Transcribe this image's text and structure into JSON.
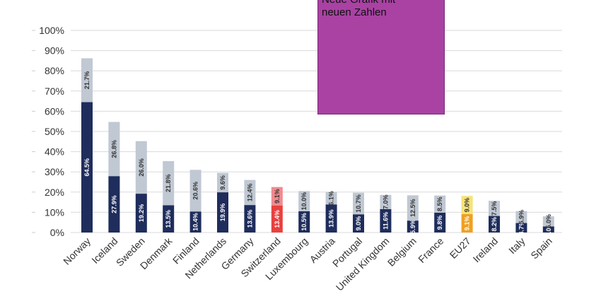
{
  "chart_data": {
    "type": "stacked_bar",
    "categories": [
      "Norway",
      "Iceland",
      "Sweden",
      "Denmark",
      "Finland",
      "Netherlands",
      "Germany",
      "Switzerland",
      "Luxembourg",
      "Austria",
      "Portugal",
      "United Kingdom",
      "Belgium",
      "France",
      "EU27",
      "Ireland",
      "Italy",
      "Spain"
    ],
    "series": [
      {
        "values": [
          64.5,
          27.9,
          19.2,
          13.5,
          10.4,
          19.9,
          13.6,
          13.4,
          10.5,
          13.9,
          9.0,
          11.6,
          5.9,
          9.8,
          9.1,
          8.2,
          4.7,
          3.0
        ],
        "value_labels": [
          "64.5%",
          "27.9%",
          "19.2%",
          "13.5%",
          "10.4%",
          "19.9%",
          "13.6%",
          "13.4%",
          "10.5%",
          "13.9%",
          "9.0%",
          "11.6%",
          "5.9%",
          "9.8%",
          "9.1%",
          "8.2%",
          "4.7%",
          "3.0%"
        ],
        "colors": [
          "#1f2d5c",
          "#1f2d5c",
          "#1f2d5c",
          "#1f2d5c",
          "#1f2d5c",
          "#1f2d5c",
          "#1f2d5c",
          "#e8413f",
          "#1f2d5c",
          "#1f2d5c",
          "#1f2d5c",
          "#1f2d5c",
          "#1f2d5c",
          "#1f2d5c",
          "#f0a020",
          "#1f2d5c",
          "#1f2d5c",
          "#1f2d5c"
        ]
      },
      {
        "values": [
          21.7,
          26.8,
          26.0,
          21.8,
          20.6,
          9.6,
          12.4,
          9.1,
          10.0,
          6.1,
          10.7,
          7.0,
          12.5,
          8.5,
          9.0,
          7.5,
          5.9,
          5.0
        ],
        "value_labels": [
          "21.7%",
          "26.8%",
          "26.0%",
          "21.8%",
          "20.6%",
          "9.6%",
          "12.4%",
          "9.1%",
          "10.0%",
          "6.1%",
          "10.7%",
          "7.0%",
          "12.5%",
          "8.5%",
          "9.0%",
          "7.5%",
          "5.9%",
          "5.0%"
        ],
        "colors": [
          "#c0c8d3",
          "#c0c8d3",
          "#c0c8d3",
          "#c0c8d3",
          "#c0c8d3",
          "#c0c8d3",
          "#c0c8d3",
          "#f08a8e",
          "#c0c8d3",
          "#c0c8d3",
          "#c0c8d3",
          "#c0c8d3",
          "#c0c8d3",
          "#c0c8d3",
          "#f5e27a",
          "#c0c8d3",
          "#c0c8d3",
          "#c0c8d3"
        ]
      }
    ],
    "ylim": [
      0,
      100
    ],
    "yticks": [
      {
        "value": 0,
        "label": "0%"
      },
      {
        "value": 10,
        "label": "10%"
      },
      {
        "value": 20,
        "label": "20%"
      },
      {
        "value": 30,
        "label": "30%"
      },
      {
        "value": 40,
        "label": "40%"
      },
      {
        "value": 50,
        "label": "50%"
      },
      {
        "value": 60,
        "label": "60%"
      },
      {
        "value": 70,
        "label": "70%"
      },
      {
        "value": 80,
        "label": "80%"
      },
      {
        "value": 90,
        "label": "90%"
      },
      {
        "value": 100,
        "label": "100%"
      }
    ],
    "grid": true,
    "annotation": "Neue Grafik mit\nneuen Zahlen"
  }
}
